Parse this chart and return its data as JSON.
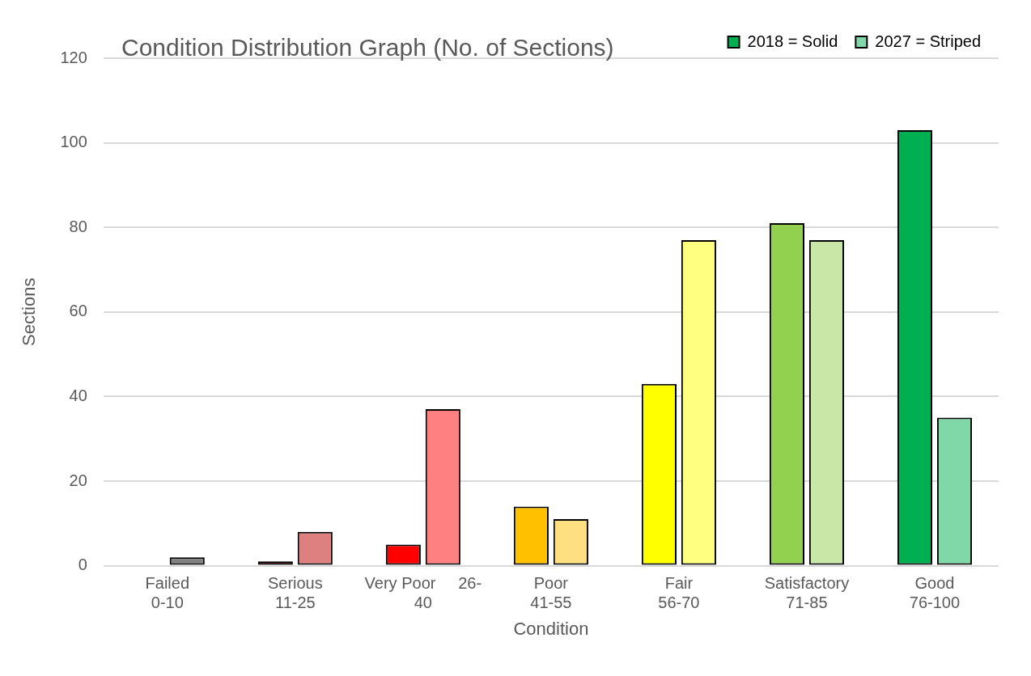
{
  "chart_data": {
    "type": "bar",
    "title": "Condition Distribution Graph (No. of Sections)",
    "xlabel": "Condition",
    "ylabel": "Sections",
    "categories": [
      "Failed\n0-10",
      "Serious\n11-25",
      "Very Poor     26-\n40",
      "Poor\n41-55",
      "Fair\n56-70",
      "Satisfactory\n71-85",
      "Good\n76-100"
    ],
    "series": [
      {
        "name": "2018 = Solid",
        "color": "#00b050",
        "colors": [
          "#000000",
          "#c00000",
          "#ff0000",
          "#ffc000",
          "#ffff00",
          "#92d050",
          "#00b050"
        ],
        "values": [
          0,
          1,
          5,
          14,
          43,
          81,
          103
        ]
      },
      {
        "name": "2027 = Striped",
        "color": "#80d8a8",
        "colors": [
          "#808080",
          "#df8080",
          "#ff8080",
          "#ffe080",
          "#ffff80",
          "#c9e8a8",
          "#80d8a8"
        ],
        "values": [
          2,
          8,
          37,
          11,
          77,
          77,
          35
        ]
      }
    ],
    "ylim": [
      0,
      120
    ],
    "yticks": [
      0,
      20,
      40,
      60,
      80,
      100,
      120
    ],
    "grid": "y",
    "legend": "top right"
  }
}
